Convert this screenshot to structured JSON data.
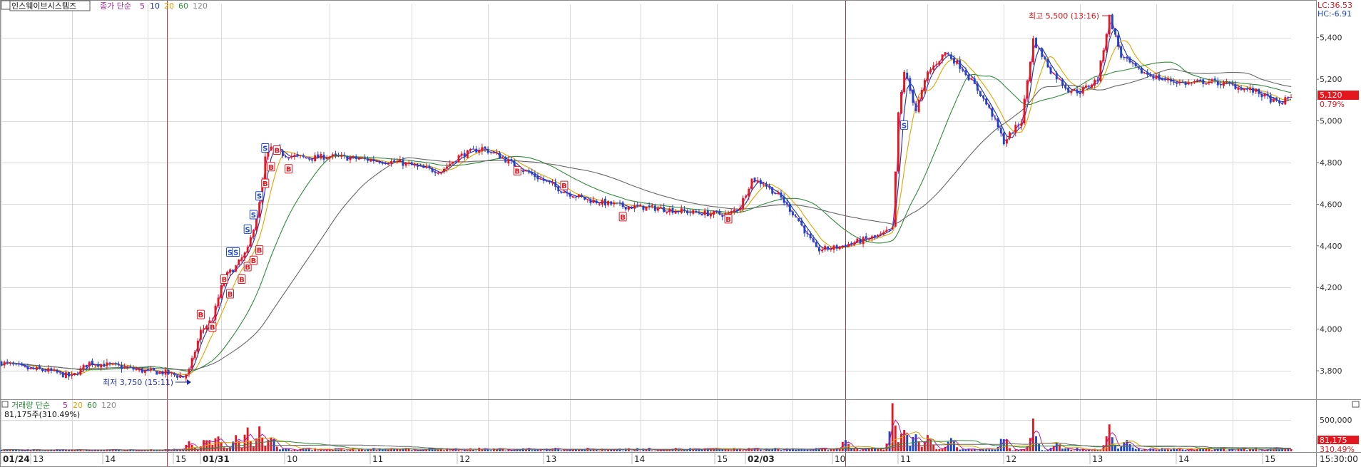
{
  "header": {
    "stock_name": "인스웨이브시스템즈",
    "price_legend": {
      "prefix": "종가 단순",
      "ma": [
        "5",
        "10",
        "20",
        "60",
        "120"
      ]
    },
    "lc": "LC:36.53",
    "hc": "HC:-6.91"
  },
  "volume_header": {
    "legend_prefix": "거래량 단순",
    "ma": [
      "5",
      "20",
      "60",
      "120"
    ],
    "current": "81,175주(310.49%)"
  },
  "markers": {
    "high": "최고 5,500 (13:16)",
    "low": "최저 3,750 (15:11)",
    "last_price": "5,120",
    "last_change": "0.79%",
    "last_volume": "81,175",
    "last_volume_pct": "310.49%"
  },
  "colors": {
    "up": "#e4161e",
    "down": "#1f45c8",
    "ma5": "#b21f9e",
    "ma10": "#1a2fa3",
    "ma20": "#e2a400",
    "ma60": "#2e8b3a",
    "ma120": "#666666",
    "grid": "#d9d9d9",
    "divider": "#c0303a"
  },
  "chart_data": {
    "type": "candlestick",
    "title": "인스웨이브시스템즈",
    "y_axis": {
      "side": "right",
      "range": [
        3670,
        5560
      ],
      "ticks": [
        3800,
        4000,
        4200,
        4400,
        4600,
        4800,
        5000,
        5200,
        5400
      ],
      "tick_labels": [
        "3,800",
        "4,000",
        "4,200",
        "4,400",
        "4,600",
        "4,800",
        "5,000",
        "5,200",
        "5,400"
      ]
    },
    "volume_axis": {
      "ticks": [
        500000
      ],
      "tick_labels": [
        "500,000"
      ]
    },
    "x_labels": [
      "01/24",
      "13",
      "14",
      "15",
      "01/31",
      "10",
      "11",
      "12",
      "13",
      "14",
      "15",
      "02/03",
      "10",
      "11",
      "12",
      "13",
      "14",
      "15",
      "15:30:00"
    ],
    "day_dividers": [
      "01/31",
      "02/03"
    ],
    "price_path": [
      {
        "t": 0,
        "p": 3840
      },
      {
        "t": 4,
        "p": 3810
      },
      {
        "t": 8,
        "p": 3800
      },
      {
        "t": 12,
        "p": 3770
      },
      {
        "t": 15,
        "p": 3840
      },
      {
        "t": 20,
        "p": 3820
      },
      {
        "t": 24,
        "p": 3800
      },
      {
        "t": 28,
        "p": 3790
      },
      {
        "t": 31,
        "p": 3770
      },
      {
        "t": 32,
        "p": 3800
      },
      {
        "t": 34,
        "p": 3990
      },
      {
        "t": 36,
        "p": 4050
      },
      {
        "t": 38,
        "p": 4250
      },
      {
        "t": 40,
        "p": 4300
      },
      {
        "t": 42,
        "p": 4380
      },
      {
        "t": 44,
        "p": 4600
      },
      {
        "t": 45,
        "p": 4820
      },
      {
        "t": 46,
        "p": 4870
      },
      {
        "t": 48,
        "p": 4840
      },
      {
        "t": 52,
        "p": 4820
      },
      {
        "t": 56,
        "p": 4830
      },
      {
        "t": 60,
        "p": 4820
      },
      {
        "t": 64,
        "p": 4810
      },
      {
        "t": 68,
        "p": 4800
      },
      {
        "t": 72,
        "p": 4770
      },
      {
        "t": 75,
        "p": 4760
      },
      {
        "t": 78,
        "p": 4830
      },
      {
        "t": 82,
        "p": 4870
      },
      {
        "t": 85,
        "p": 4830
      },
      {
        "t": 88,
        "p": 4780
      },
      {
        "t": 92,
        "p": 4720
      },
      {
        "t": 96,
        "p": 4660
      },
      {
        "t": 100,
        "p": 4620
      },
      {
        "t": 106,
        "p": 4590
      },
      {
        "t": 112,
        "p": 4580
      },
      {
        "t": 118,
        "p": 4560
      },
      {
        "t": 124,
        "p": 4550
      },
      {
        "t": 126,
        "p": 4590
      },
      {
        "t": 128,
        "p": 4720
      },
      {
        "t": 130,
        "p": 4700
      },
      {
        "t": 133,
        "p": 4630
      },
      {
        "t": 136,
        "p": 4520
      },
      {
        "t": 139,
        "p": 4380
      },
      {
        "t": 142,
        "p": 4390
      },
      {
        "t": 146,
        "p": 4420
      },
      {
        "t": 150,
        "p": 4450
      },
      {
        "t": 152,
        "p": 4480
      },
      {
        "t": 153,
        "p": 5030
      },
      {
        "t": 154,
        "p": 5240
      },
      {
        "t": 156,
        "p": 5050
      },
      {
        "t": 158,
        "p": 5230
      },
      {
        "t": 161,
        "p": 5330
      },
      {
        "t": 164,
        "p": 5250
      },
      {
        "t": 167,
        "p": 5130
      },
      {
        "t": 169,
        "p": 5030
      },
      {
        "t": 171,
        "p": 4900
      },
      {
        "t": 174,
        "p": 5000
      },
      {
        "t": 176,
        "p": 5390
      },
      {
        "t": 179,
        "p": 5240
      },
      {
        "t": 182,
        "p": 5150
      },
      {
        "t": 184,
        "p": 5140
      },
      {
        "t": 187,
        "p": 5200
      },
      {
        "t": 189,
        "p": 5500
      },
      {
        "t": 191,
        "p": 5310
      },
      {
        "t": 194,
        "p": 5240
      },
      {
        "t": 198,
        "p": 5200
      },
      {
        "t": 202,
        "p": 5180
      },
      {
        "t": 206,
        "p": 5190
      },
      {
        "t": 210,
        "p": 5170
      },
      {
        "t": 214,
        "p": 5140
      },
      {
        "t": 218,
        "p": 5080
      },
      {
        "t": 220,
        "p": 5120
      }
    ],
    "series": [
      {
        "name": "5",
        "period": 5
      },
      {
        "name": "10",
        "period": 10
      },
      {
        "name": "20",
        "period": 20
      },
      {
        "name": "60",
        "period": 60
      },
      {
        "name": "120",
        "period": 120
      }
    ],
    "volume_series": [
      {
        "name": "5",
        "period": 5
      },
      {
        "name": "20",
        "period": 20
      },
      {
        "name": "60",
        "period": 60
      },
      {
        "name": "120",
        "period": 120
      }
    ],
    "signals": [
      {
        "type": "S",
        "t": 39,
        "p": 4370
      },
      {
        "type": "S",
        "t": 40,
        "p": 4370
      },
      {
        "type": "S",
        "t": 42,
        "p": 4480
      },
      {
        "type": "S",
        "t": 43,
        "p": 4550
      },
      {
        "type": "S",
        "t": 44,
        "p": 4640
      },
      {
        "type": "S",
        "t": 45,
        "p": 4870
      },
      {
        "type": "B",
        "t": 34,
        "p": 4070
      },
      {
        "type": "B",
        "t": 36,
        "p": 4010
      },
      {
        "type": "B",
        "t": 38,
        "p": 4240
      },
      {
        "type": "B",
        "t": 39,
        "p": 4170
      },
      {
        "type": "B",
        "t": 41,
        "p": 4240
      },
      {
        "type": "B",
        "t": 42,
        "p": 4300
      },
      {
        "type": "B",
        "t": 43,
        "p": 4330
      },
      {
        "type": "B",
        "t": 44,
        "p": 4380
      },
      {
        "type": "B",
        "t": 45,
        "p": 4700
      },
      {
        "type": "B",
        "t": 46,
        "p": 4780
      },
      {
        "type": "B",
        "t": 47,
        "p": 4860
      },
      {
        "type": "B",
        "t": 49,
        "p": 4770
      },
      {
        "type": "B",
        "t": 88,
        "p": 4760
      },
      {
        "type": "B",
        "t": 96,
        "p": 4690
      },
      {
        "type": "B",
        "t": 106,
        "p": 4540
      },
      {
        "type": "B",
        "t": 124,
        "p": 4530
      },
      {
        "type": "S",
        "t": 154,
        "p": 4980
      }
    ]
  }
}
